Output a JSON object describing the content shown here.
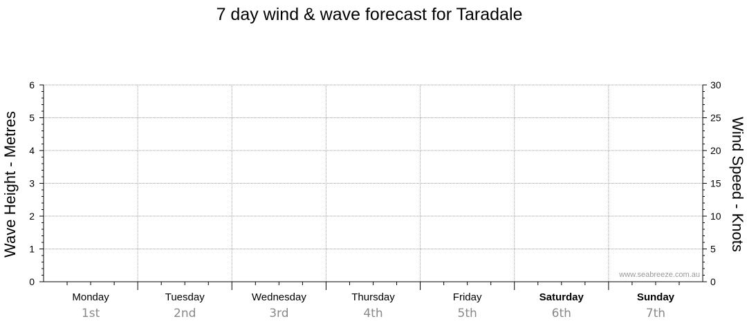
{
  "chart_data": {
    "type": "line",
    "title": "7 day wind & wave forecast for Taradale",
    "ylabel_left": "Wave Height - Metres",
    "ylabel_right": "Wind Speed - Knots",
    "ylim_left": [
      0,
      6
    ],
    "ylim_right": [
      0,
      30
    ],
    "yticks_left": [
      "0",
      "1",
      "2",
      "3",
      "4",
      "5",
      "6"
    ],
    "yticks_right": [
      "0",
      "5",
      "10",
      "15",
      "20",
      "25",
      "30"
    ],
    "grid": true,
    "days": [
      {
        "name": "Monday",
        "date": "1st",
        "weekend": false
      },
      {
        "name": "Tuesday",
        "date": "2nd",
        "weekend": false
      },
      {
        "name": "Wednesday",
        "date": "3rd",
        "weekend": false
      },
      {
        "name": "Thursday",
        "date": "4th",
        "weekend": false
      },
      {
        "name": "Friday",
        "date": "5th",
        "weekend": false
      },
      {
        "name": "Saturday",
        "date": "6th",
        "weekend": true
      },
      {
        "name": "Sunday",
        "date": "7th",
        "weekend": true
      }
    ],
    "series": [],
    "watermark": "www.seabreeze.com.au"
  }
}
